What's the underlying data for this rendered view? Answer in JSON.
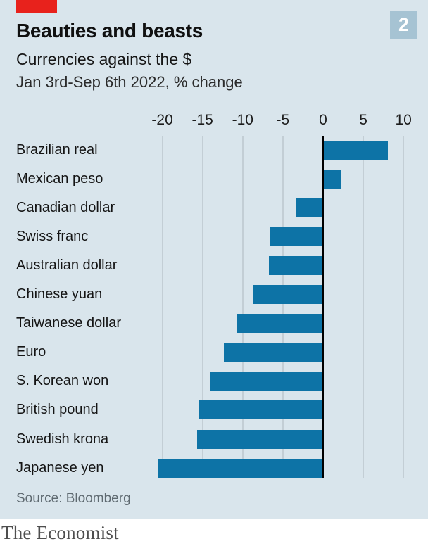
{
  "header": {
    "badge": "2",
    "title": "Beauties and beasts",
    "subtitle": "Currencies against the $",
    "period": "Jan 3rd-Sep 6th 2022, % change"
  },
  "chart_data": {
    "type": "bar",
    "orientation": "horizontal",
    "title": "Beauties and beasts",
    "subtitle": "Currencies against the $",
    "note": "Jan 3rd-Sep 6th 2022, % change",
    "categories": [
      "Brazilian real",
      "Mexican peso",
      "Canadian dollar",
      "Swiss franc",
      "Australian dollar",
      "Chinese yuan",
      "Taiwanese dollar",
      "Euro",
      "S. Korean won",
      "British pound",
      "Swedish krona",
      "Japanese yen"
    ],
    "values": [
      8.0,
      2.1,
      -3.3,
      -6.6,
      -6.7,
      -8.7,
      -10.7,
      -12.3,
      -13.9,
      -15.3,
      -15.6,
      -20.4
    ],
    "x_ticks": [
      -20,
      -15,
      -10,
      -5,
      0,
      5,
      10
    ],
    "xlim": [
      -22.5,
      13
    ],
    "grid": "vertical-gridlines-at-ticks",
    "legend": "none",
    "zero_axis": true
  },
  "footer": {
    "source": "Source: Bloomberg",
    "brand": "The Economist"
  },
  "colors": {
    "background": "#d9e5ec",
    "bar": "#0d73a6",
    "accent_red": "#e8221c",
    "badge": "#a6c3d3",
    "gridline": "#c3ced5",
    "zero_axis": "#000000",
    "source_text": "#5f6a71",
    "brand_text": "#4e4e4e"
  }
}
